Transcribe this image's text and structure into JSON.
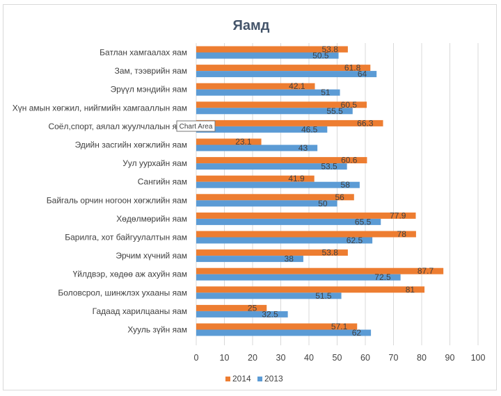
{
  "chart_data": {
    "type": "bar",
    "orientation": "horizontal",
    "title": "Яамд",
    "categories": [
      "Батлан хамгаалах яам",
      "Зам, тээврийн яам",
      "Эрүүл мэндийн яам",
      "Хүн амын хөгжил, нийгмийн хамгааллын яам",
      "Соёл,спорт, аялал жуулчлалын яам",
      "Эдийн засгийн хөгжлийн яам",
      "Уул уурхайн яам",
      "Сангийн яам",
      "Байгаль орчин ногоон хөгжлийн яам",
      "Хөдөлмөрийн яам",
      "Барилга, хот байгуулалтын яам",
      "Эрчим хүчний яам",
      "Үйлдвэр, хөдөө аж ахуйн яам",
      "Боловсрол, шинжлэх ухааны яам",
      "Гадаад харилцааны яам",
      "Хууль зүйн яам"
    ],
    "series": [
      {
        "name": "2014",
        "color": "#ed7d31",
        "values": [
          53.8,
          61.8,
          42.1,
          60.5,
          66.3,
          23.1,
          60.6,
          41.9,
          56,
          77.9,
          78,
          53.8,
          87.7,
          81,
          25,
          57.1
        ]
      },
      {
        "name": "2013",
        "color": "#5b9bd5",
        "values": [
          50.5,
          64,
          51,
          55.5,
          46.5,
          43,
          53.5,
          58,
          50,
          65.5,
          62.5,
          38,
          72.5,
          51.5,
          32.5,
          62
        ]
      }
    ],
    "xlim": [
      0,
      100
    ],
    "xticks": [
      0,
      10,
      20,
      30,
      40,
      50,
      60,
      70,
      80,
      90,
      100
    ],
    "grid": true,
    "legend": "bottom-left"
  },
  "tooltip": {
    "text": "Chart Area"
  }
}
